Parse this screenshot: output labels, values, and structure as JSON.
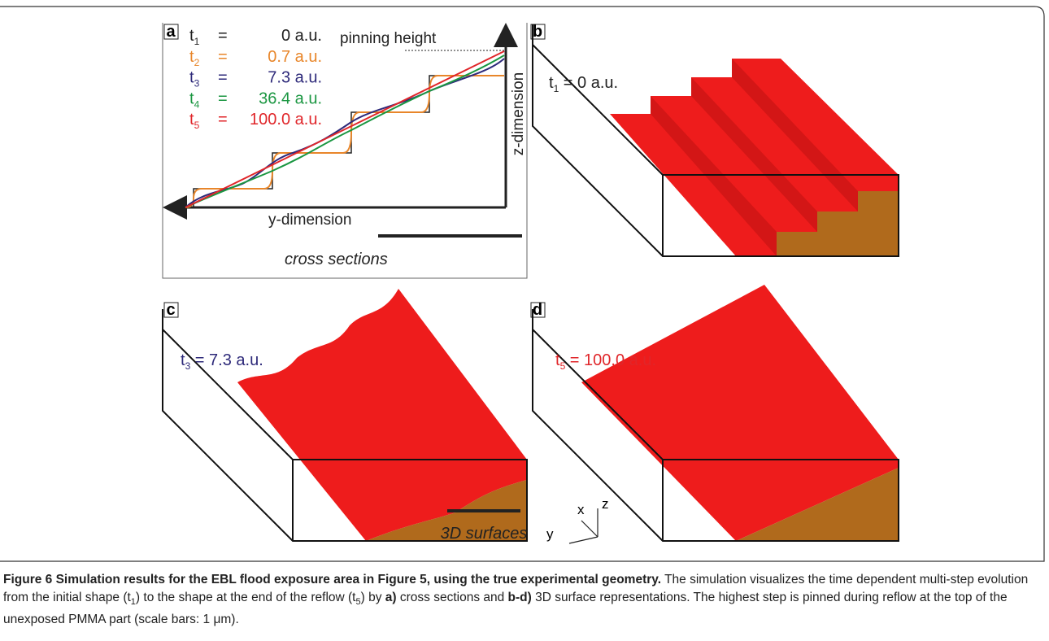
{
  "panels": {
    "a": {
      "label": "a",
      "legend": [
        {
          "t": "t",
          "sub": "1",
          "eq": "=",
          "value": "0 a.u.",
          "color": "#222222"
        },
        {
          "t": "t",
          "sub": "2",
          "eq": "=",
          "value": "0.7 a.u.",
          "color": "#e8862a"
        },
        {
          "t": "t",
          "sub": "3",
          "eq": "=",
          "value": "7.3 a.u.",
          "color": "#2e2a7a"
        },
        {
          "t": "t",
          "sub": "4",
          "eq": "=",
          "value": "36.4 a.u.",
          "color": "#1a9641"
        },
        {
          "t": "t",
          "sub": "5",
          "eq": "=",
          "value": "100.0 a.u.",
          "color": "#e0262a"
        }
      ],
      "pinning": "pinning height",
      "z_axis": "z-dimension",
      "y_axis": "y-dimension",
      "footer": "cross sections"
    },
    "b": {
      "label": "b",
      "t": "t",
      "sub": "1",
      "text": " = 0 a.u.",
      "color": "#222222"
    },
    "c": {
      "label": "c",
      "t": "t",
      "sub": "3",
      "text": " = 7.3 a.u.",
      "color": "#2e2a7a"
    },
    "d": {
      "label": "d",
      "t": "t",
      "sub": "5",
      "text": " = 100.0 a.u.",
      "color": "#e0262a"
    },
    "triad": {
      "x": "x",
      "y": "y",
      "z": "z"
    },
    "footer": "3D surfaces"
  },
  "caption": {
    "title": "Figure 6 Simulation results for the EBL flood exposure area in Figure 5, using the true experimental geometry.",
    "body": [
      {
        "text": " The simulation visualizes the time dependent multi-step evolution from the initial shape (t"
      },
      {
        "sub": "1"
      },
      {
        "text": ") to the shape at the end of the reflow (t"
      },
      {
        "sub": "5"
      },
      {
        "text": ") by "
      },
      {
        "bold": "a)"
      },
      {
        "text": " cross sections and "
      },
      {
        "bold": "b-d)"
      },
      {
        "text": " 3D surface representations. The highest step is pinned during reflow at the top of the unexposed PMMA part (scale bars: 1 μm)."
      }
    ]
  }
}
